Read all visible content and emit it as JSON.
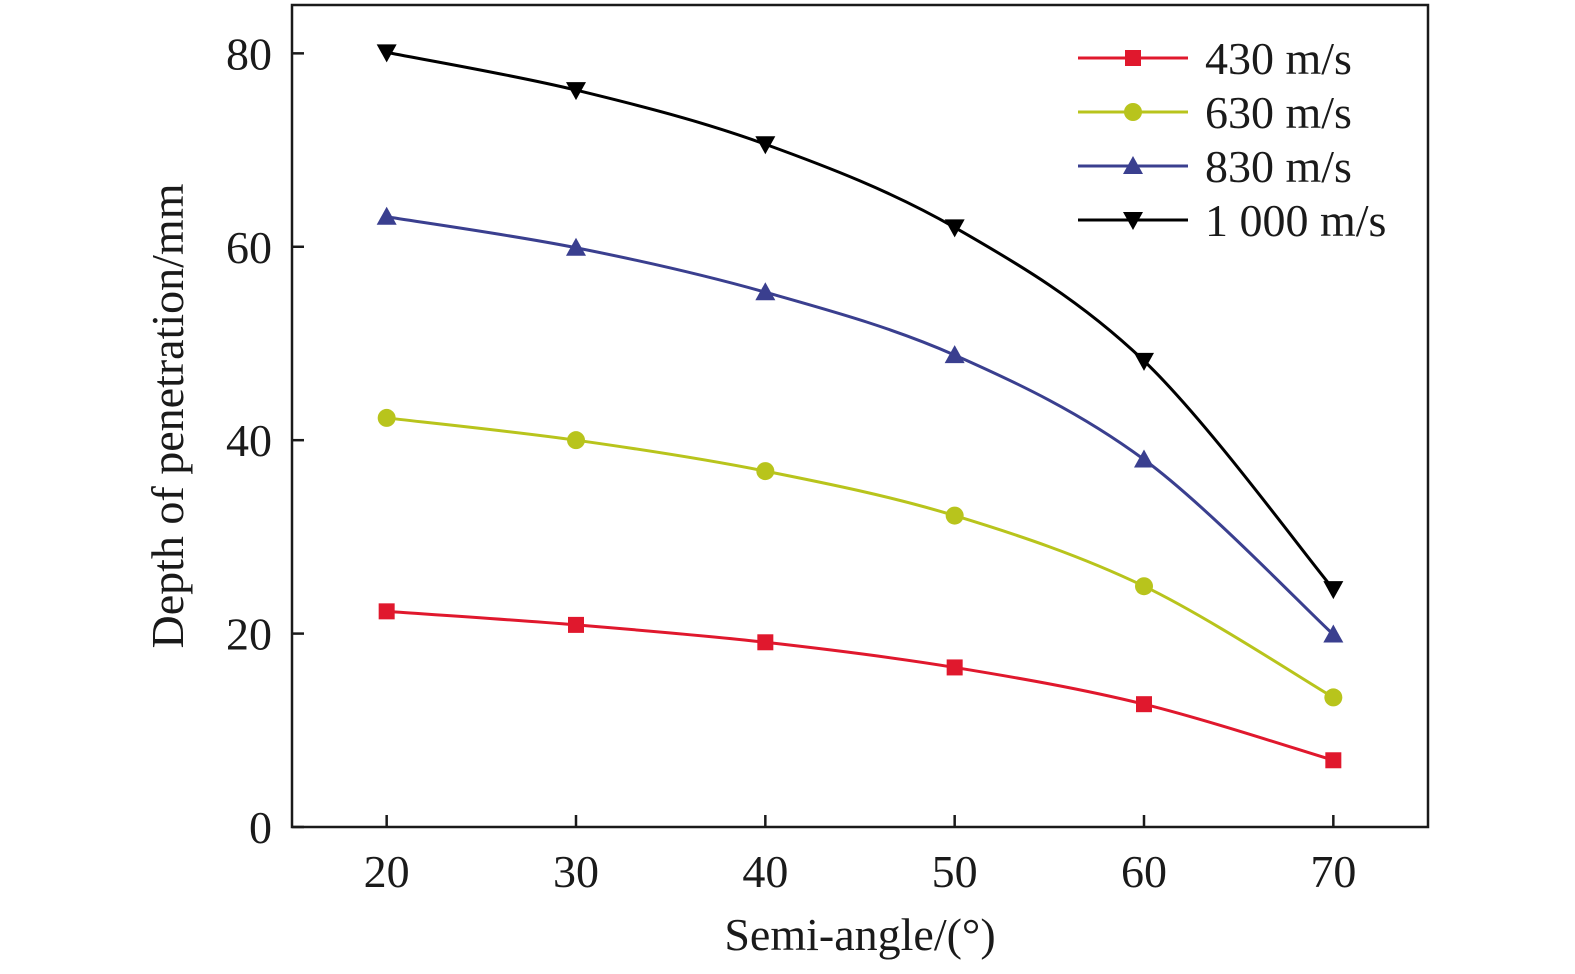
{
  "chart_data": {
    "type": "line",
    "xlabel": "Semi-angle/(°)",
    "ylabel": "Depth of penetration/mm",
    "x": [
      20,
      30,
      40,
      50,
      60,
      70
    ],
    "xticks": [
      "20",
      "30",
      "40",
      "50",
      "60",
      "70"
    ],
    "yticks": [
      "0",
      "20",
      "40",
      "60",
      "80"
    ],
    "xlim": [
      15,
      75
    ],
    "ylim": [
      0,
      85
    ],
    "grid": false,
    "legend_position": "top-right",
    "series": [
      {
        "name": "430 m/s",
        "color": "#e0182d",
        "marker": "square",
        "values": [
          22.3,
          20.9,
          19.1,
          16.5,
          12.7,
          6.9
        ]
      },
      {
        "name": "630 m/s",
        "color": "#b8c41c",
        "marker": "circle",
        "values": [
          42.3,
          40.0,
          36.8,
          32.2,
          24.9,
          13.4
        ]
      },
      {
        "name": "830 m/s",
        "color": "#3a3f8f",
        "marker": "triangle-up",
        "values": [
          63.1,
          59.9,
          55.3,
          48.8,
          38.0,
          19.9
        ]
      },
      {
        "name": "1 000 m/s",
        "color": "#000000",
        "marker": "triangle-down",
        "values": [
          80.1,
          76.2,
          70.6,
          62.0,
          48.2,
          24.6
        ]
      }
    ]
  }
}
